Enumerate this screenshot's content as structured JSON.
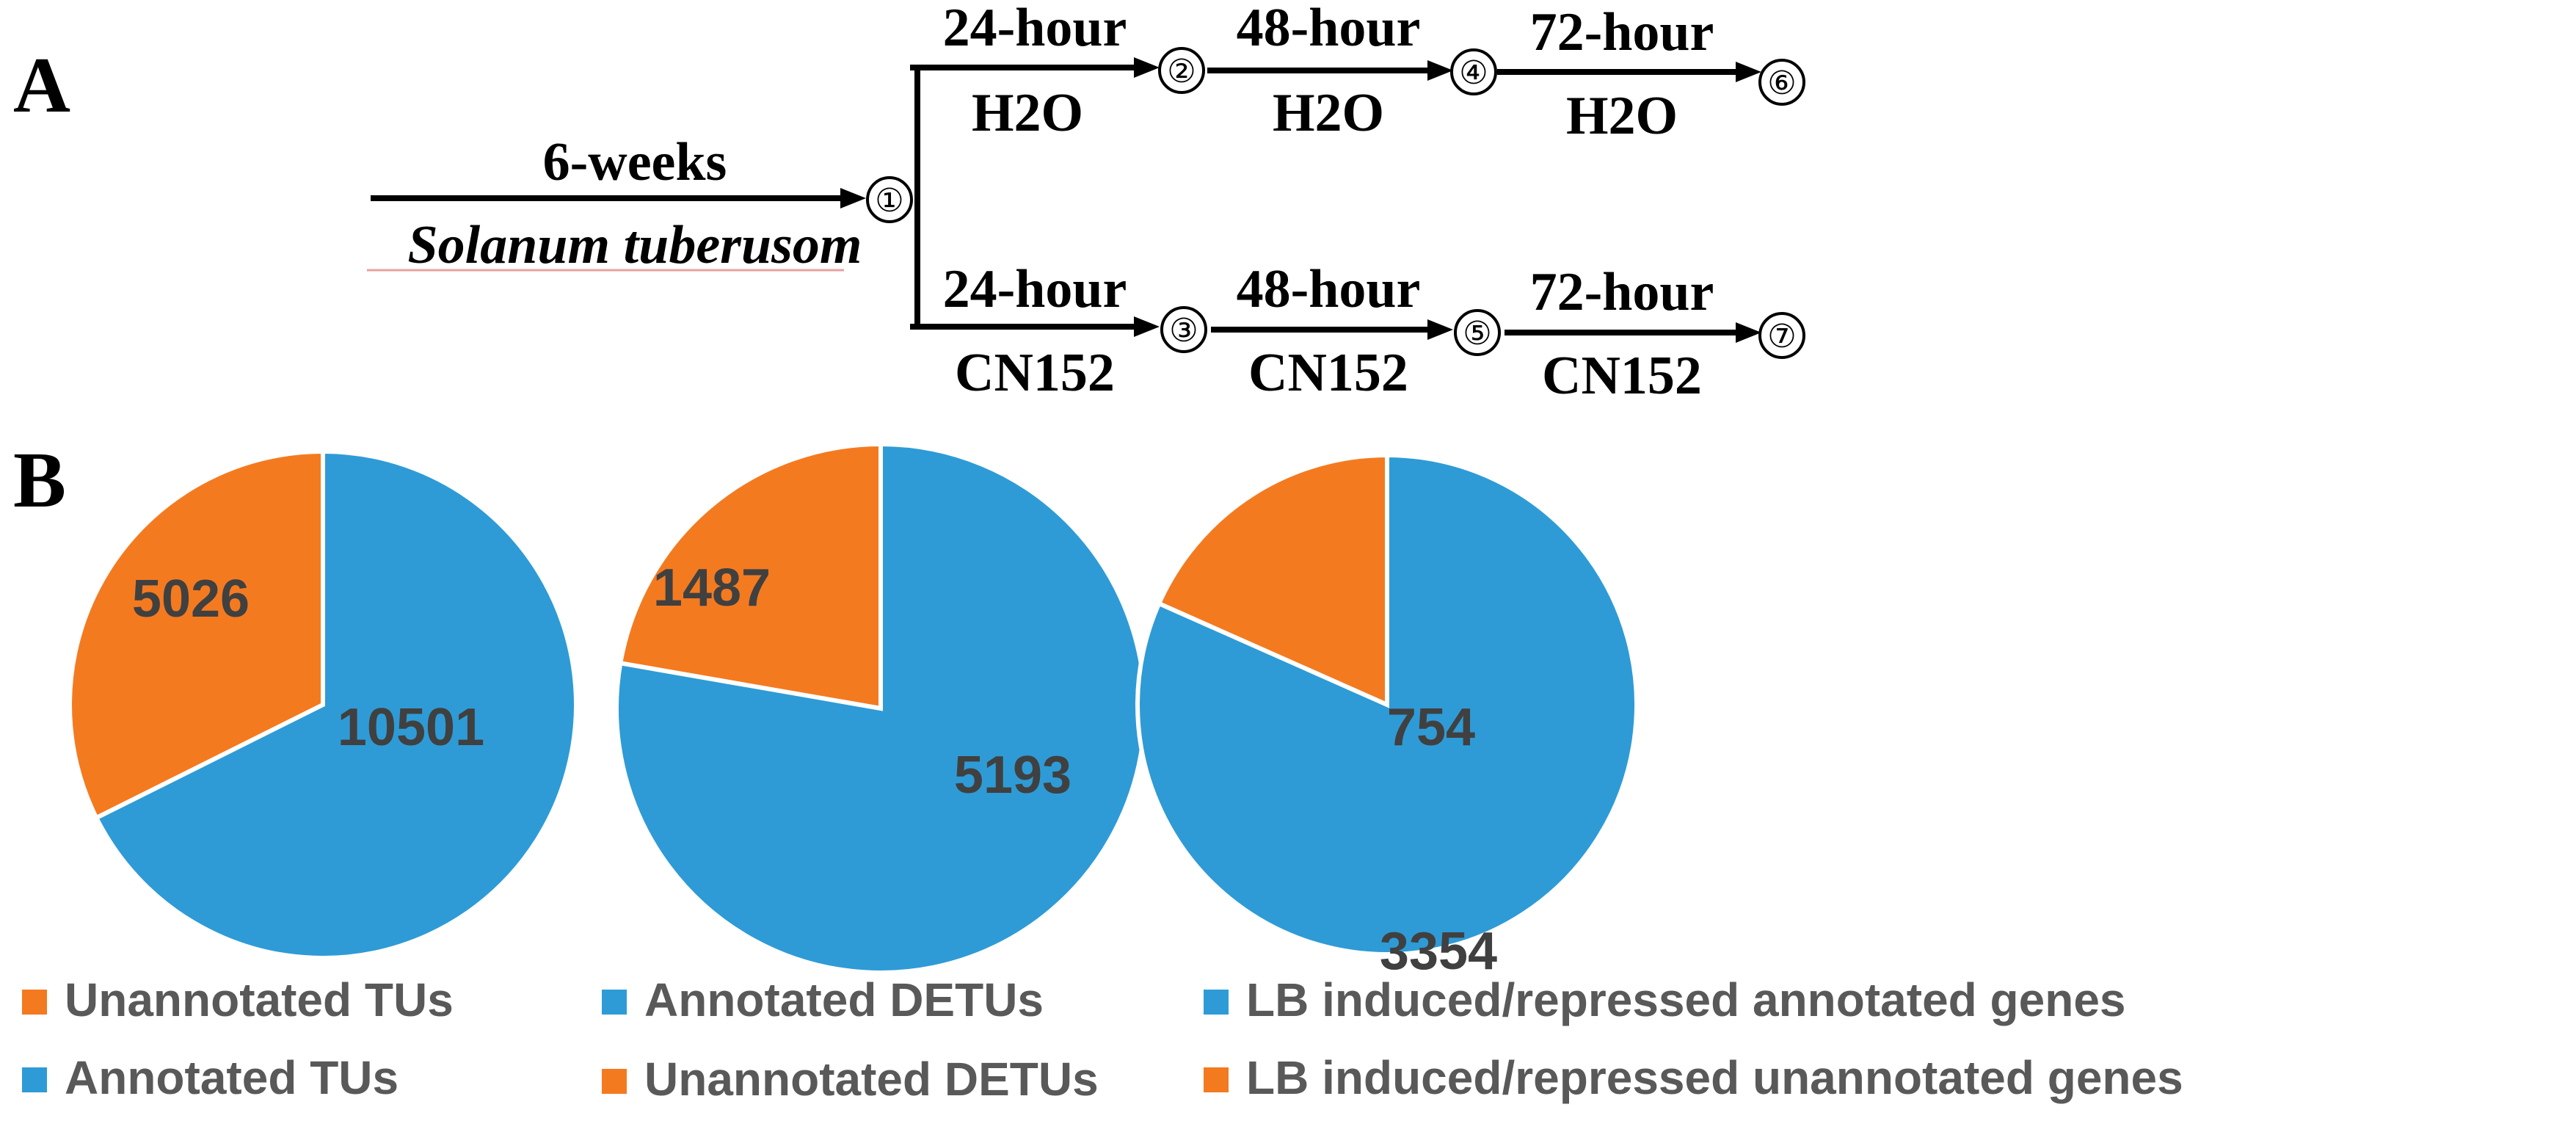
{
  "panel_a": {
    "letter": "A",
    "start": {
      "duration": "6-weeks",
      "species": "Solanum tuberusom",
      "node": "①"
    },
    "upper_branch": [
      {
        "time": "24-hour",
        "condition": "H2O",
        "node": "②"
      },
      {
        "time": "48-hour",
        "condition": "H2O",
        "node": "④"
      },
      {
        "time": "72-hour",
        "condition": "H2O",
        "node": "⑥"
      }
    ],
    "lower_branch": [
      {
        "time": "24-hour",
        "condition": "CN152",
        "node": "③"
      },
      {
        "time": "48-hour",
        "condition": "CN152",
        "node": "⑤"
      },
      {
        "time": "72-hour",
        "condition": "CN152",
        "node": "⑦"
      }
    ]
  },
  "panel_b": {
    "letter": "B"
  },
  "colors": {
    "blue": "#2e9bd6",
    "orange": "#f47a20"
  },
  "chart_data": [
    {
      "type": "pie",
      "slices": [
        {
          "label": "Unannotated TUs",
          "value": 5026,
          "color": "#f47a20"
        },
        {
          "label": "Annotated TUs",
          "value": 10501,
          "color": "#2e9bd6"
        }
      ],
      "legend": [
        {
          "label": "Unannotated TUs",
          "color": "#f47a20"
        },
        {
          "label": "Annotated TUs",
          "color": "#2e9bd6"
        }
      ]
    },
    {
      "type": "pie",
      "slices": [
        {
          "label": "Unannotated DETUs",
          "value": 1487,
          "color": "#f47a20"
        },
        {
          "label": "Annotated DETUs",
          "value": 5193,
          "color": "#2e9bd6"
        }
      ],
      "legend": [
        {
          "label": "Annotated DETUs",
          "color": "#2e9bd6"
        },
        {
          "label": "Unannotated DETUs",
          "color": "#f47a20"
        }
      ]
    },
    {
      "type": "pie",
      "slices": [
        {
          "label": "LB induced/repressed unannotated genes",
          "value": 754,
          "color": "#f47a20"
        },
        {
          "label": "LB induced/repressed annotated genes",
          "value": 3354,
          "color": "#2e9bd6"
        }
      ],
      "legend": [
        {
          "label": "LB induced/repressed annotated genes",
          "color": "#2e9bd6"
        },
        {
          "label": "LB induced/repressed unannotated genes",
          "color": "#f47a20"
        }
      ]
    }
  ]
}
